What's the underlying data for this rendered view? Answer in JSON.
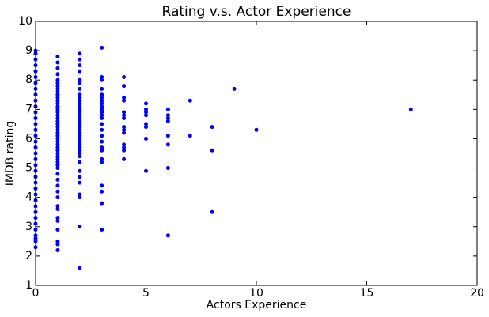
{
  "chart_data": {
    "type": "scatter",
    "title": "Rating v.s. Actor Experience",
    "x_label": "Actors Experience",
    "y_label": "IMDB rating",
    "color": "#0000ff",
    "xlim": [
      0,
      20
    ],
    "ylim": [
      1,
      10
    ],
    "xticks": [
      0,
      5,
      10,
      15,
      20
    ],
    "yticks": [
      1,
      2,
      3,
      4,
      5,
      6,
      7,
      8,
      9,
      10
    ],
    "grid": false,
    "x": [
      0,
      0,
      0,
      0,
      0,
      0,
      0,
      0,
      0,
      0,
      0,
      0,
      0,
      0,
      0,
      0,
      0,
      0,
      0,
      0,
      0,
      0,
      0,
      0,
      0,
      0,
      0,
      0,
      0,
      0,
      0,
      0,
      0,
      0,
      0,
      0,
      1,
      1,
      1,
      1,
      1,
      1,
      1,
      1,
      1,
      1,
      1,
      1,
      1,
      1,
      1,
      1,
      1,
      1,
      1,
      1,
      1,
      1,
      1,
      1,
      1,
      1,
      1,
      1,
      1,
      1,
      1,
      1,
      1,
      1,
      1,
      1,
      1,
      1,
      1,
      1,
      1,
      1,
      1,
      1,
      1,
      1,
      1,
      1,
      2,
      2,
      2,
      2,
      2,
      2,
      2,
      2,
      2,
      2,
      2,
      2,
      2,
      2,
      2,
      2,
      2,
      2,
      2,
      2,
      2,
      2,
      2,
      2,
      2,
      2,
      2,
      2,
      2,
      2,
      2,
      2,
      2,
      2,
      2,
      2,
      2,
      3,
      3,
      3,
      3,
      3,
      3,
      3,
      3,
      3,
      3,
      3,
      3,
      3,
      3,
      3,
      3,
      3,
      3,
      3,
      3,
      3,
      3,
      3,
      3,
      3,
      4,
      4,
      4,
      4,
      4,
      4,
      4,
      4,
      4,
      4,
      4,
      4,
      4,
      4,
      5,
      5,
      5,
      5,
      5,
      5,
      5,
      5,
      6,
      6,
      6,
      6,
      6,
      6,
      6,
      6,
      7,
      7,
      8,
      8,
      8,
      9,
      10,
      17
    ],
    "y": [
      2.3,
      2.5,
      2.6,
      2.7,
      2.9,
      3.1,
      3.3,
      3.5,
      3.7,
      3.9,
      4.1,
      4.3,
      4.5,
      4.7,
      4.9,
      5.1,
      5.3,
      5.5,
      5.7,
      5.9,
      6.1,
      6.3,
      6.5,
      6.7,
      6.9,
      7.1,
      7.3,
      7.5,
      7.7,
      7.9,
      8.1,
      8.3,
      8.5,
      8.7,
      8.9,
      9.0,
      2.2,
      2.4,
      2.5,
      2.9,
      3.2,
      3.3,
      3.6,
      3.7,
      4.0,
      4.2,
      4.4,
      4.6,
      4.8,
      5.0,
      5.1,
      5.2,
      5.3,
      5.4,
      5.5,
      5.6,
      5.7,
      5.8,
      5.9,
      6.0,
      6.1,
      6.2,
      6.3,
      6.4,
      6.5,
      6.6,
      6.7,
      6.8,
      6.9,
      7.0,
      7.1,
      7.2,
      7.3,
      7.4,
      7.5,
      7.6,
      7.7,
      7.8,
      7.9,
      8.0,
      8.2,
      8.4,
      8.6,
      8.8,
      1.6,
      3.0,
      4.0,
      4.1,
      4.5,
      4.7,
      4.9,
      5.2,
      5.4,
      5.5,
      5.6,
      5.7,
      5.8,
      5.9,
      6.0,
      6.1,
      6.2,
      6.3,
      6.4,
      6.5,
      6.6,
      6.7,
      6.8,
      6.9,
      7.0,
      7.1,
      7.2,
      7.3,
      7.4,
      7.5,
      7.7,
      7.9,
      8.0,
      8.3,
      8.5,
      8.7,
      8.9,
      2.9,
      3.8,
      4.2,
      4.4,
      5.2,
      5.3,
      5.6,
      5.7,
      5.9,
      6.1,
      6.3,
      6.5,
      6.7,
      6.8,
      6.9,
      7.0,
      7.1,
      7.2,
      7.3,
      7.4,
      7.5,
      7.7,
      8.0,
      8.1,
      9.1,
      5.3,
      5.6,
      5.7,
      5.8,
      6.2,
      6.3,
      6.4,
      6.7,
      6.8,
      6.9,
      7.3,
      7.4,
      7.8,
      8.1,
      4.9,
      6.0,
      6.4,
      6.5,
      6.8,
      6.9,
      7.0,
      7.2,
      2.7,
      5.0,
      5.8,
      6.1,
      6.6,
      6.7,
      6.8,
      7.0,
      6.1,
      7.3,
      3.5,
      5.6,
      6.4,
      7.7,
      6.3,
      7.0
    ]
  }
}
